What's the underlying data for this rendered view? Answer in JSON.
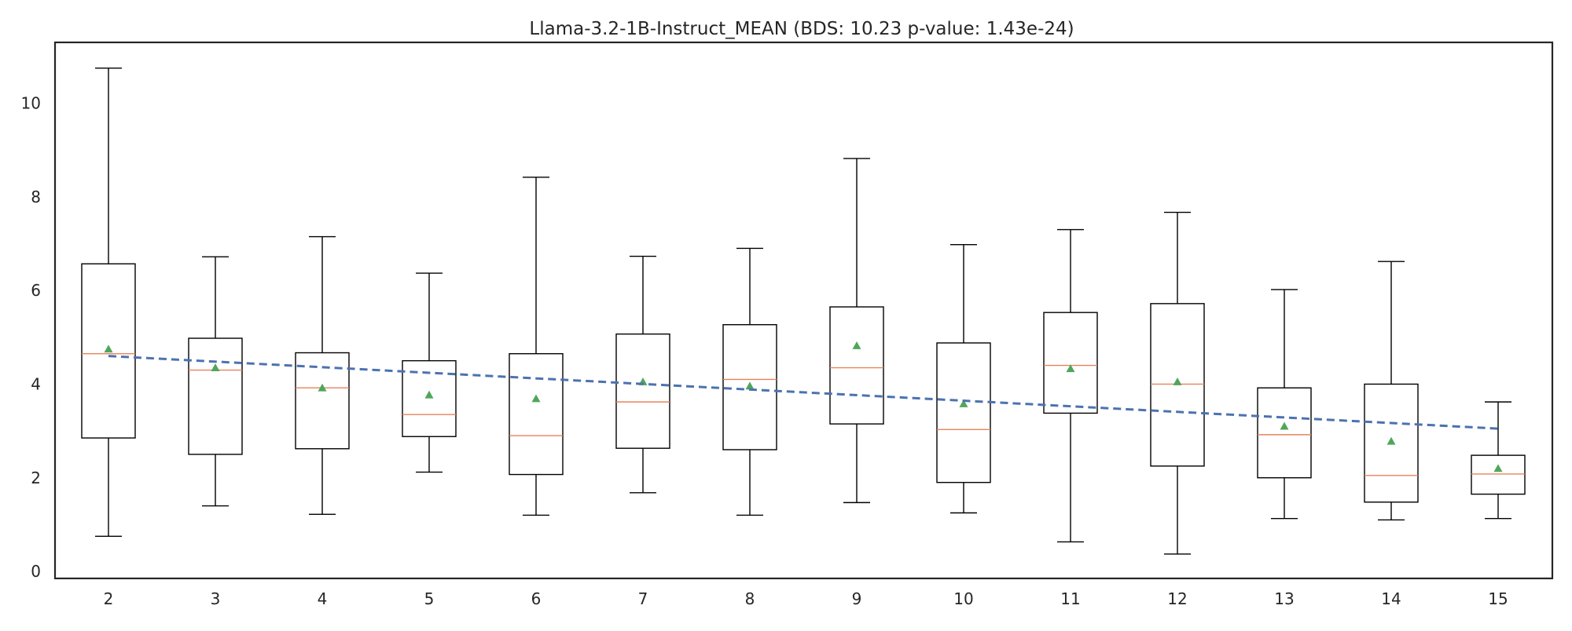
{
  "chart_data": {
    "type": "box",
    "title": "Llama-3.2-1B-Instruct_MEAN (BDS: 10.23 p-value: 1.43e-24)",
    "xlabel": "",
    "ylabel": "",
    "ylim": [
      -0.15,
      11.3
    ],
    "yticks": [
      0,
      2,
      4,
      6,
      8,
      10
    ],
    "grid": false,
    "categories": [
      "2",
      "3",
      "4",
      "5",
      "6",
      "7",
      "8",
      "9",
      "10",
      "11",
      "12",
      "13",
      "14",
      "15"
    ],
    "boxes": [
      {
        "whislo": 0.75,
        "q1": 2.85,
        "med": 4.65,
        "q3": 6.57,
        "whishi": 10.75,
        "mean": 4.75
      },
      {
        "whislo": 1.4,
        "q1": 2.5,
        "med": 4.3,
        "q3": 4.98,
        "whishi": 6.72,
        "mean": 4.35
      },
      {
        "whislo": 1.22,
        "q1": 2.62,
        "med": 3.92,
        "q3": 4.67,
        "whishi": 7.15,
        "mean": 3.92
      },
      {
        "whislo": 2.12,
        "q1": 2.88,
        "med": 3.35,
        "q3": 4.5,
        "whishi": 6.37,
        "mean": 3.77
      },
      {
        "whislo": 1.2,
        "q1": 2.07,
        "med": 2.9,
        "q3": 4.65,
        "whishi": 8.42,
        "mean": 3.69
      },
      {
        "whislo": 1.68,
        "q1": 2.63,
        "med": 3.62,
        "q3": 5.07,
        "whishi": 6.73,
        "mean": 4.05
      },
      {
        "whislo": 1.2,
        "q1": 2.6,
        "med": 4.1,
        "q3": 5.27,
        "whishi": 6.9,
        "mean": 3.96
      },
      {
        "whislo": 1.47,
        "q1": 3.15,
        "med": 4.35,
        "q3": 5.65,
        "whishi": 8.82,
        "mean": 4.82
      },
      {
        "whislo": 1.25,
        "q1": 1.9,
        "med": 3.03,
        "q3": 4.88,
        "whishi": 6.98,
        "mean": 3.58
      },
      {
        "whislo": 0.63,
        "q1": 3.38,
        "med": 4.4,
        "q3": 5.53,
        "whishi": 7.3,
        "mean": 4.33
      },
      {
        "whislo": 0.37,
        "q1": 2.25,
        "med": 4.0,
        "q3": 5.72,
        "whishi": 7.67,
        "mean": 4.05
      },
      {
        "whislo": 1.13,
        "q1": 2.0,
        "med": 2.92,
        "q3": 3.92,
        "whishi": 6.02,
        "mean": 3.1
      },
      {
        "whislo": 1.1,
        "q1": 1.48,
        "med": 2.05,
        "q3": 4.0,
        "whishi": 6.62,
        "mean": 2.78
      },
      {
        "whislo": 1.13,
        "q1": 1.65,
        "med": 2.08,
        "q3": 2.48,
        "whishi": 3.62,
        "mean": 2.2
      }
    ],
    "trendline": {
      "x_start": "2",
      "y_start": 4.6,
      "x_end": "15",
      "y_end": 3.05,
      "style": "dashed"
    },
    "colors": {
      "box": "#000000",
      "median": "#e8825a",
      "mean_marker": "#4fa65b",
      "trendline": "#4c72b0",
      "text": "#262626"
    }
  }
}
